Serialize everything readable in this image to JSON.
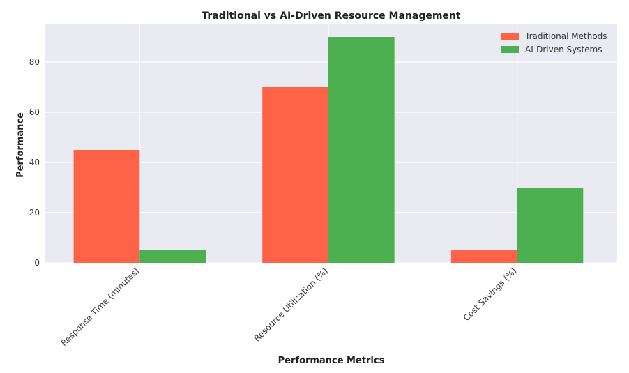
{
  "chart_data": {
    "type": "bar",
    "title": "Traditional vs AI-Driven Resource Management",
    "xlabel": "Performance Metrics",
    "ylabel": "Performance",
    "categories": [
      "Response Time (minutes)",
      "Resource Utilization (%)",
      "Cost Savings (%)"
    ],
    "series": [
      {
        "name": "Traditional Methods",
        "values": [
          45,
          70,
          5
        ],
        "color": "#ff6347"
      },
      {
        "name": "AI-Driven Systems",
        "values": [
          5,
          90,
          30
        ],
        "color": "#4caf50"
      }
    ],
    "ylim": [
      0,
      95
    ],
    "yticks": [
      0,
      20,
      40,
      60,
      80
    ],
    "grid": true,
    "legend": "top-right",
    "plot_background": "#eaeaf2"
  }
}
